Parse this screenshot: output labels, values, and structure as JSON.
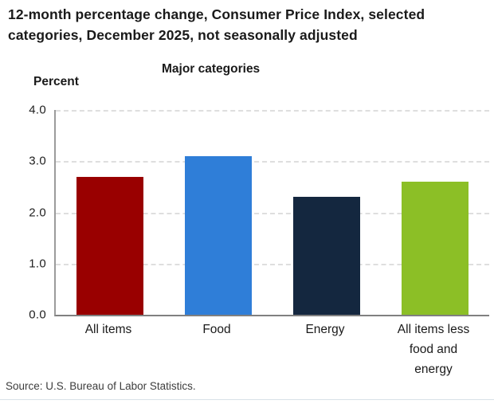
{
  "header": {
    "title": "12-month percentage change, Consumer Price Index, selected categories, December 2025, not seasonally adjusted",
    "axis_unit_label": "Percent",
    "chart_heading": "Major categories"
  },
  "chart_data": {
    "type": "bar",
    "title": "Major categories",
    "ylabel": "Percent",
    "categories": [
      "All items",
      "Food",
      "Energy",
      "All items less food and energy"
    ],
    "values": [
      2.7,
      3.1,
      2.3,
      2.6
    ],
    "bar_colors": [
      "#990000",
      "#2f7ed8",
      "#14273f",
      "#8cbf26"
    ],
    "ylim": [
      0,
      4.0
    ],
    "ytick_labels": [
      "4.0",
      "3.0",
      "2.0",
      "1.0",
      "0.0"
    ],
    "grid": "horizontal dashed gridlines at 1.0 intervals",
    "legend": "none"
  },
  "footer": {
    "source": "Source: U.S. Bureau of Labor Statistics."
  }
}
